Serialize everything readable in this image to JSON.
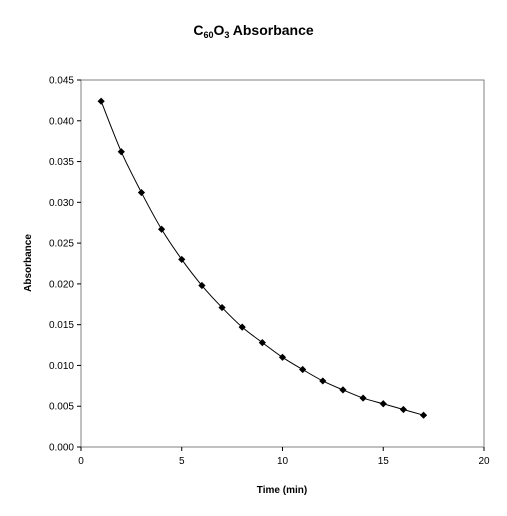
{
  "chart_data": {
    "type": "scatter",
    "title": {
      "base": "C",
      "sub1": "60",
      "mid": "O",
      "sub2": "3",
      "rest": " Absorbance"
    },
    "xlabel": "Time (min)",
    "ylabel": "Absorbance",
    "xlim": [
      0,
      20
    ],
    "ylim": [
      0,
      0.045
    ],
    "xticks": [
      "0",
      "5",
      "10",
      "15",
      "20"
    ],
    "yticks": [
      "0.000",
      "0.005",
      "0.010",
      "0.015",
      "0.020",
      "0.025",
      "0.030",
      "0.035",
      "0.040",
      "0.045"
    ],
    "grid": false,
    "legend": "none",
    "marker": "diamond",
    "line": "smooth",
    "color": "#000000",
    "series": [
      {
        "x": [
          1,
          2,
          3,
          4,
          5,
          6,
          7,
          8,
          9,
          10,
          11,
          12,
          13,
          14,
          15,
          16,
          17
        ],
        "y": [
          0.0424,
          0.0362,
          0.0312,
          0.0267,
          0.023,
          0.0198,
          0.0171,
          0.0147,
          0.0128,
          0.011,
          0.0095,
          0.0081,
          0.007,
          0.006,
          0.0053,
          0.0046,
          0.0039
        ]
      }
    ]
  }
}
